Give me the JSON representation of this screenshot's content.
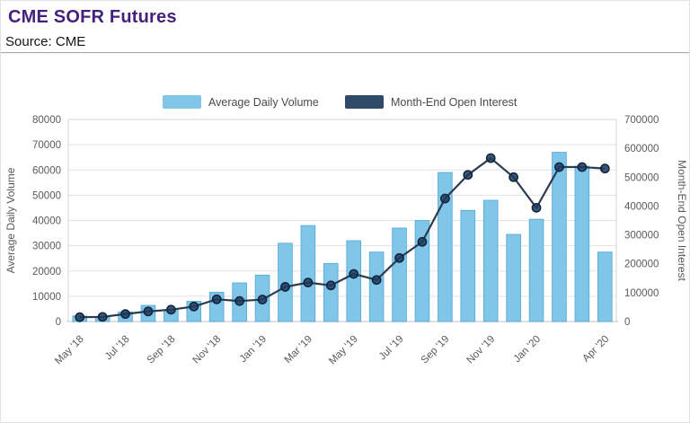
{
  "header": {
    "title": "CME SOFR Futures",
    "source": "Source: CME"
  },
  "chart_data": {
    "type": "bar",
    "title": "CME SOFR Futures",
    "categories": [
      "May '18",
      "Jun '18",
      "Jul '18",
      "Aug '18",
      "Sep '18",
      "Oct '18",
      "Nov '18",
      "Dec '18",
      "Jan '19",
      "Feb '19",
      "Mar '19",
      "Apr '19",
      "May '19",
      "Jun '19",
      "Jul '19",
      "Aug '19",
      "Sep '19",
      "Oct '19",
      "Nov '19",
      "Dec '19",
      "Jan '20",
      "Feb '20",
      "Mar '20",
      "Apr '20"
    ],
    "x_axis": {
      "tick_indices_shown": [
        0,
        2,
        4,
        6,
        8,
        10,
        12,
        14,
        16,
        18,
        20,
        23
      ],
      "label_rotation_deg": -45
    },
    "series": [
      {
        "name": "Average Daily Volume",
        "type": "bar",
        "axis": "left",
        "color": "#7FC6E9",
        "border_color": "#54A7D4",
        "values": [
          2200,
          1900,
          3800,
          6400,
          4800,
          8000,
          11600,
          15300,
          18400,
          31000,
          38000,
          23000,
          32000,
          27500,
          37000,
          40000,
          59000,
          44000,
          48000,
          34500,
          40500,
          67000,
          61500,
          27500
        ]
      },
      {
        "name": "Month-End Open Interest",
        "type": "line",
        "axis": "right",
        "color": "#2B3C50",
        "marker_color": "#1D3A5F",
        "marker_stroke": "#12273E",
        "legend_color": "#2D4A68",
        "values": [
          15000,
          16000,
          26000,
          35000,
          41000,
          52000,
          77000,
          71000,
          76000,
          120000,
          135000,
          125000,
          165000,
          144000,
          220000,
          276000,
          426000,
          508000,
          566000,
          500000,
          394000,
          535000,
          535000,
          530000
        ]
      }
    ],
    "left_axis": {
      "label": "Average Daily Volume",
      "min": 0,
      "max": 80000,
      "step": 10000,
      "tick_labels": [
        "0",
        "10000",
        "20000",
        "30000",
        "40000",
        "50000",
        "60000",
        "70000",
        "80000"
      ]
    },
    "right_axis": {
      "label": "Month-End Open Interest",
      "min": 0,
      "max": 700000,
      "step": 100000,
      "tick_labels": [
        "0",
        "100000",
        "200000",
        "300000",
        "400000",
        "500000",
        "600000",
        "700000"
      ]
    },
    "grid": true,
    "legend_position": "top-center",
    "text_color": "#595959",
    "grid_color": "#E3E3E3",
    "axis_line_color": "#D5D5D5"
  }
}
